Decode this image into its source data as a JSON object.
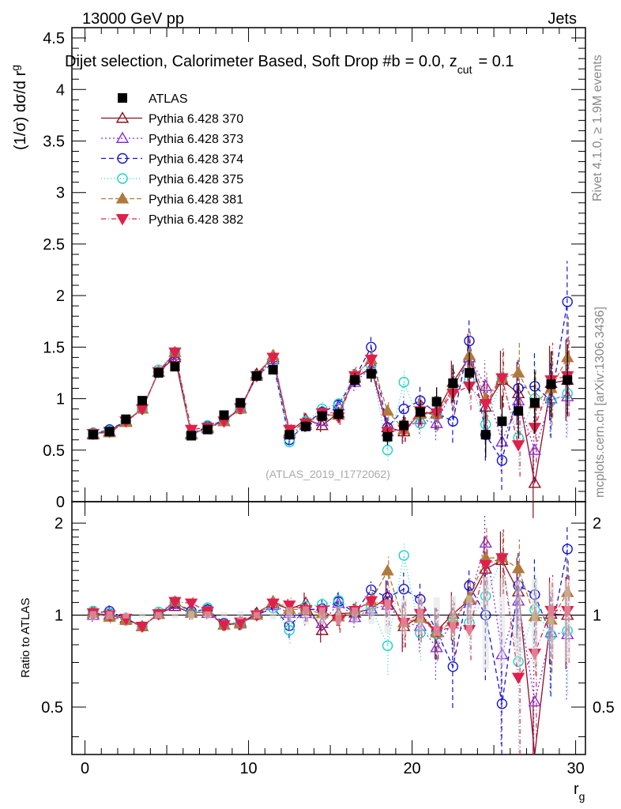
{
  "header": {
    "energy": "13000 GeV pp",
    "category": "Jets"
  },
  "chart_data": {
    "type": "scatter",
    "title": "Dijet selection, Calorimeter Based, Soft Drop #b = 0.0, z_cut = 0.1",
    "title_main": "Dijet selection, Calorimeter Based, Soft Drop #b",
    "title_eq": "= 0.0, z",
    "title_sub": "cut",
    "title_tail": "= 0.1",
    "xlabel": "r",
    "xlabel_sub": "g",
    "ylabel": "(1/σ) dσ/d r",
    "ylabel_sub": "g",
    "ratio_ylabel": "Ratio to ATLAS",
    "analysis_label": "(ATLAS_2019_I1772062)",
    "side_label_top": "Rivet 4.1.0, ≥ 1.9M events",
    "side_label_bottom": "mcplots.cern.ch [arXiv:1306.3436]",
    "xlim": [
      -0.8,
      30.6
    ],
    "ylim": [
      0,
      4.6
    ],
    "ratio_ylim": [
      0.35,
      2.35
    ],
    "xticks": [
      0,
      10,
      20,
      30
    ],
    "yticks": [
      0.5,
      1,
      1.5,
      2,
      2.5,
      3,
      3.5,
      4,
      4.5
    ],
    "yticks_labels": [
      "0.5",
      "1",
      "1.5",
      "2",
      "2.5",
      "3",
      "3.5",
      "4",
      "4.5"
    ],
    "y_zero_label": "0",
    "ratio_yticks": [
      0.5,
      1,
      2
    ],
    "ratio_ytick_labels": [
      "0.5",
      "1",
      "2"
    ],
    "x": [
      0.5,
      1.5,
      2.5,
      3.5,
      4.5,
      5.5,
      6.5,
      7.5,
      8.5,
      9.5,
      10.5,
      11.5,
      12.5,
      13.5,
      14.5,
      15.5,
      16.5,
      17.5,
      18.5,
      19.5,
      20.5,
      21.5,
      22.5,
      23.5,
      24.5,
      25.5,
      26.5,
      27.5,
      28.5,
      29.5
    ],
    "data": {
      "name": "ATLAS",
      "values": [
        0.65,
        0.68,
        0.8,
        0.98,
        1.25,
        1.31,
        0.64,
        0.7,
        0.84,
        0.96,
        1.22,
        1.28,
        0.65,
        0.73,
        0.83,
        0.85,
        1.18,
        1.24,
        0.63,
        0.74,
        0.87,
        0.97,
        1.15,
        1.25,
        0.65,
        0.78,
        0.88,
        0.96,
        1.14,
        1.18
      ],
      "errors": [
        0.02,
        0.02,
        0.02,
        0.02,
        0.03,
        0.03,
        0.02,
        0.02,
        0.02,
        0.03,
        0.03,
        0.04,
        0.04,
        0.05,
        0.05,
        0.06,
        0.07,
        0.08,
        0.08,
        0.1,
        0.12,
        0.14,
        0.18,
        0.2,
        0.22,
        0.25,
        0.27,
        0.3,
        0.32,
        0.35
      ]
    },
    "series": [
      {
        "name": "Pythia 6.428 370",
        "color": "#8b0f1e",
        "marker": "triangle-up-open",
        "dash": "",
        "values": [
          0.66,
          0.68,
          0.78,
          0.9,
          1.26,
          1.4,
          0.65,
          0.72,
          0.78,
          0.9,
          1.24,
          1.4,
          0.68,
          0.8,
          0.74,
          0.86,
          1.2,
          1.3,
          0.72,
          0.68,
          0.86,
          0.86,
          1.16,
          1.4,
          0.92,
          1.18,
          1.05,
          0.18,
          1.15,
          1.18
        ]
      },
      {
        "name": "Pythia 6.428 373",
        "color": "#8a2be2",
        "marker": "triangle-up-open",
        "dash": "2,3",
        "values": [
          0.65,
          0.68,
          0.77,
          0.9,
          1.26,
          1.42,
          0.66,
          0.71,
          0.78,
          0.91,
          1.22,
          1.38,
          0.66,
          0.74,
          0.78,
          0.93,
          1.16,
          1.3,
          0.68,
          0.7,
          0.8,
          0.76,
          1.1,
          1.4,
          1.12,
          0.58,
          0.98,
          0.5,
          1.0,
          1.02
        ]
      },
      {
        "name": "Pythia 6.428 374",
        "color": "#1414d2",
        "marker": "circle-open",
        "dash": "6,4",
        "values": [
          0.66,
          0.7,
          0.78,
          0.9,
          1.26,
          1.44,
          0.66,
          0.73,
          0.79,
          0.9,
          1.22,
          1.35,
          0.6,
          0.76,
          0.87,
          0.94,
          1.2,
          1.5,
          0.72,
          0.9,
          0.98,
          0.86,
          0.78,
          1.56,
          0.65,
          0.4,
          1.1,
          1.12,
          0.98,
          1.94
        ]
      },
      {
        "name": "Pythia 6.428 375",
        "color": "#19d2c8",
        "marker": "circle-open",
        "dash": "1,3",
        "values": [
          0.67,
          0.69,
          0.78,
          0.9,
          1.28,
          1.45,
          0.65,
          0.74,
          0.78,
          0.91,
          1.22,
          1.35,
          0.58,
          0.78,
          0.9,
          0.95,
          1.22,
          1.32,
          0.5,
          1.16,
          0.76,
          0.84,
          1.1,
          1.18,
          0.75,
          1.2,
          0.62,
          1.0,
          0.98,
          1.05
        ]
      },
      {
        "name": "Pythia 6.428 381",
        "color": "#b07a3c",
        "marker": "triangle-up-filled",
        "dash": "6,3",
        "values": [
          0.66,
          0.67,
          0.77,
          0.9,
          1.26,
          1.45,
          0.65,
          0.72,
          0.78,
          0.9,
          1.22,
          1.42,
          0.68,
          0.76,
          0.84,
          0.84,
          1.22,
          1.38,
          0.88,
          0.7,
          0.85,
          0.85,
          1.1,
          1.42,
          1.0,
          1.2,
          1.25,
          0.95,
          1.1,
          1.4
        ]
      },
      {
        "name": "Pythia 6.428 382",
        "color": "#e0204a",
        "marker": "triangle-down-filled",
        "dash": "6,3,1,3",
        "values": [
          0.66,
          0.68,
          0.78,
          0.9,
          1.26,
          1.45,
          0.7,
          0.72,
          0.78,
          0.91,
          1.22,
          1.4,
          0.7,
          0.76,
          0.86,
          0.82,
          1.22,
          1.38,
          0.68,
          0.7,
          0.88,
          0.86,
          1.05,
          1.12,
          0.95,
          1.2,
          0.55,
          0.72,
          1.18,
          1.22
        ]
      }
    ]
  }
}
